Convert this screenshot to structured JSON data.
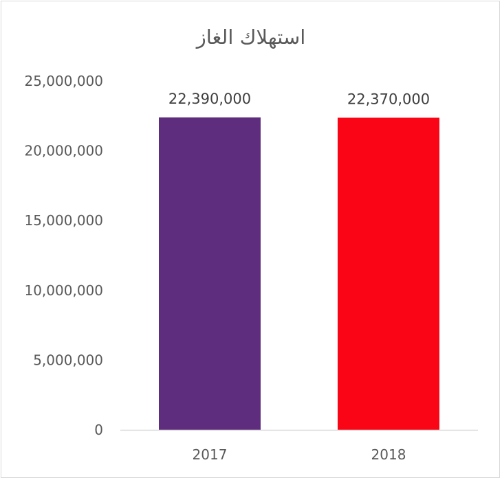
{
  "chart_data": {
    "type": "bar",
    "title": "استهلاك الغاز",
    "xlabel": "",
    "ylabel": "",
    "categories": [
      "2017",
      "2018"
    ],
    "values": [
      22390000,
      22370000
    ],
    "data_labels": [
      "22,390,000",
      "22,370,000"
    ],
    "ylim": [
      0,
      25000000
    ],
    "yticks": [
      0,
      5000000,
      10000000,
      15000000,
      20000000,
      25000000
    ],
    "ytick_labels": [
      "0",
      "5,000,000",
      "10,000,000",
      "15,000,000",
      "20,000,000",
      "25,000,000"
    ],
    "bar_colors": [
      "#5e2d7e",
      "#fa0516"
    ],
    "grid": false,
    "legend": "none"
  }
}
